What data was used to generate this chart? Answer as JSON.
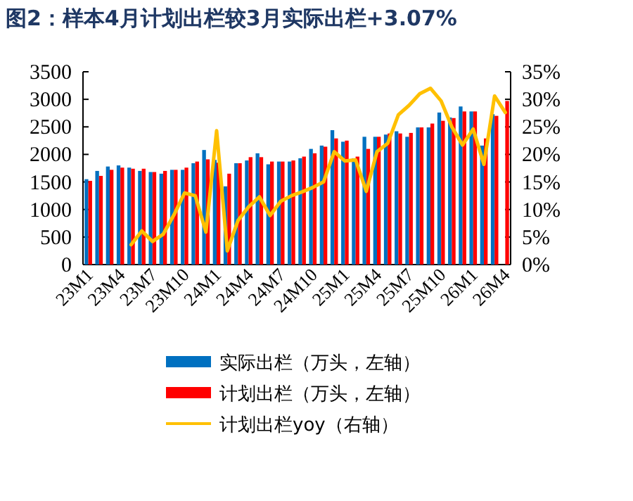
{
  "chart_data": {
    "type": "bar",
    "title": "图2：样本4月计划出栏较3月实际出栏+3.07%",
    "categories": [
      "23M1",
      null,
      null,
      "23M4",
      null,
      null,
      "23M7",
      null,
      null,
      "23M10",
      null,
      null,
      "24M1",
      null,
      null,
      "24M4",
      null,
      null,
      "24M7",
      null,
      null,
      "24M10",
      null,
      null,
      "25M1",
      null,
      null,
      "25M4",
      null,
      null,
      "25M7",
      null,
      null,
      "25M10",
      null,
      null,
      "26M1",
      null,
      null,
      "26M4"
    ],
    "series": [
      {
        "name": "实际出栏（万头，左轴）",
        "color": "#0070c0",
        "values": [
          1550,
          1700,
          1780,
          1800,
          1760,
          1700,
          1680,
          1650,
          1720,
          1720,
          1840,
          2080,
          1900,
          1420,
          1840,
          1890,
          2020,
          1820,
          1870,
          1870,
          1930,
          2100,
          2160,
          2440,
          2230,
          1930,
          2320,
          2320,
          2360,
          2420,
          2320,
          2490,
          2490,
          2760,
          2670,
          2870,
          2780,
          2160,
          2730,
          null
        ]
      },
      {
        "name": "计划出栏（万头，左轴）",
        "color": "#ff0000",
        "values": [
          1520,
          1610,
          1720,
          1760,
          1740,
          1740,
          1680,
          1700,
          1720,
          1760,
          1870,
          1910,
          1850,
          1650,
          1840,
          1950,
          1950,
          1870,
          1870,
          1890,
          1960,
          2020,
          2140,
          2290,
          2250,
          1960,
          2100,
          2320,
          2380,
          2380,
          2390,
          2490,
          2560,
          2610,
          2660,
          2780,
          2780,
          2290,
          2700,
          2970
        ]
      },
      {
        "name": "计划出栏yoy（右轴）",
        "type": "line",
        "axis": "y2",
        "color": "#ffc000",
        "values": [
          null,
          null,
          null,
          null,
          3.6,
          6.1,
          4.2,
          5.5,
          9,
          13,
          12.5,
          5.9,
          24.3,
          2.5,
          8,
          10.5,
          12.3,
          8.9,
          11.5,
          12.5,
          13.2,
          14,
          15,
          20.5,
          18.8,
          19,
          13.3,
          20.5,
          22,
          27.2,
          28.9,
          31,
          32,
          29.7,
          25,
          21.7,
          24.6,
          18.2,
          30.6,
          27.6
        ]
      }
    ],
    "ylim": [
      0,
      3500
    ],
    "yticks": [
      0,
      500,
      1000,
      1500,
      2000,
      2500,
      3000,
      3500
    ],
    "y2lim": [
      0,
      35
    ],
    "y2ticks": [
      {
        "value": 0,
        "label": "0%"
      },
      {
        "value": 5,
        "label": "5%"
      },
      {
        "value": 10,
        "label": "10%"
      },
      {
        "value": 15,
        "label": "15%"
      },
      {
        "value": 20,
        "label": "20%"
      },
      {
        "value": 25,
        "label": "25%"
      },
      {
        "value": 30,
        "label": "30%"
      },
      {
        "value": 35,
        "label": "35%"
      }
    ],
    "grid": false,
    "legend": "bottom"
  }
}
